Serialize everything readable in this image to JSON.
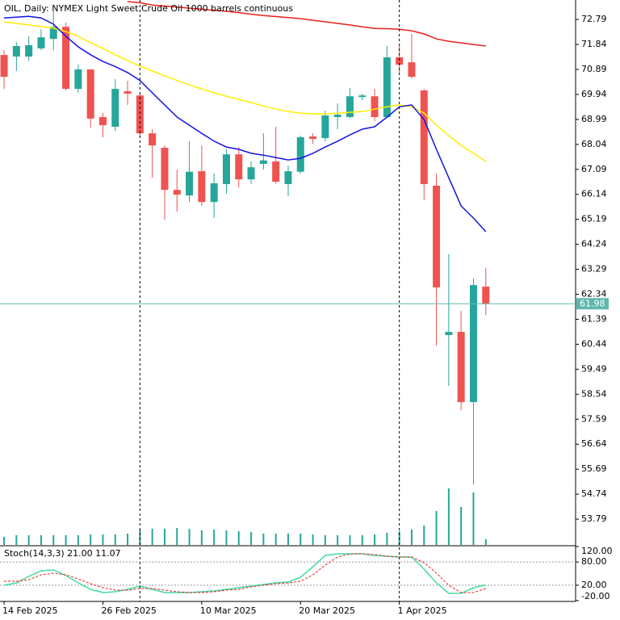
{
  "chart_data": [
    {
      "type": "candlestick",
      "title": "OIL, Daily:  NYMEX Light Sweet Crude Oil 1000 barrels continuous",
      "open": [
        71.44,
        71.38,
        71.38,
        71.69,
        72.05,
        72.51,
        70.15,
        70.89,
        69.08,
        68.71,
        70.06,
        69.9,
        68.46,
        67.91,
        66.31,
        66.1,
        67.02,
        65.85,
        66.53,
        67.66,
        66.71,
        67.3,
        67.39,
        66.53,
        67.0,
        68.34,
        68.28,
        69.08,
        69.08,
        69.84,
        69.87,
        69.08,
        71.35,
        71.16,
        70.09,
        66.47,
        60.79,
        60.91,
        58.24,
        62.63
      ],
      "high": [
        71.62,
        71.93,
        72.15,
        72.42,
        73.1,
        72.67,
        71.07,
        70.89,
        69.23,
        70.52,
        70.46,
        69.97,
        68.62,
        68.0,
        67.08,
        68.16,
        68.0,
        66.93,
        67.85,
        67.94,
        67.39,
        68.46,
        68.71,
        67.23,
        68.37,
        68.46,
        69.32,
        69.6,
        70.18,
        69.97,
        70.15,
        71.78,
        71.78,
        72.24,
        70.15,
        66.93,
        63.86,
        61.71,
        62.94,
        63.34
      ],
      "low": [
        70.15,
        70.83,
        71.22,
        71.62,
        71.62,
        70.09,
        70.0,
        68.68,
        68.31,
        68.55,
        69.54,
        68.31,
        66.77,
        65.18,
        65.48,
        65.85,
        65.7,
        65.24,
        66.16,
        66.4,
        66.53,
        67.08,
        66.53,
        66.07,
        66.93,
        68.06,
        68.16,
        68.62,
        69.05,
        69.72,
        68.92,
        69.05,
        70.77,
        70.55,
        65.91,
        60.39,
        58.86,
        57.93,
        55.11,
        61.55
      ],
      "close": [
        70.61,
        71.78,
        71.81,
        72.11,
        72.51,
        70.15,
        70.89,
        69.02,
        68.77,
        70.15,
        69.97,
        68.46,
        68.0,
        66.31,
        66.13,
        67.0,
        65.85,
        66.56,
        67.66,
        66.71,
        67.17,
        67.43,
        66.62,
        67.02,
        68.31,
        68.25,
        69.14,
        69.17,
        69.87,
        69.9,
        69.08,
        71.35,
        71.07,
        70.61,
        66.53,
        62.6,
        60.91,
        58.24,
        62.69,
        61.98
      ],
      "up_color": "#26a69a",
      "down_color": "#ef5350",
      "lines": [
        {
          "color": "#e8201a",
          "values": [
            null,
            null,
            null,
            null,
            null,
            null,
            null,
            null,
            null,
            null,
            73.47,
            73.43,
            73.34,
            73.3,
            73.26,
            73.22,
            73.18,
            73.14,
            73.1,
            73.05,
            72.99,
            72.94,
            72.9,
            72.86,
            72.82,
            72.76,
            72.7,
            72.64,
            72.58,
            72.51,
            72.45,
            72.44,
            72.42,
            72.36,
            72.24,
            72.05,
            71.96,
            71.9,
            71.84,
            71.78
          ]
        },
        {
          "color": "#ffee00",
          "values": [
            72.7,
            72.64,
            72.58,
            72.52,
            72.46,
            72.33,
            72.15,
            71.9,
            71.69,
            71.45,
            71.23,
            71.02,
            70.83,
            70.65,
            70.47,
            70.3,
            70.15,
            70.0,
            69.87,
            69.75,
            69.63,
            69.5,
            69.38,
            69.29,
            69.23,
            69.2,
            69.2,
            69.23,
            69.26,
            69.29,
            69.38,
            69.47,
            69.54,
            69.47,
            69.23,
            68.77,
            68.37,
            68.0,
            67.7,
            67.39
          ]
        },
        {
          "color": "#1414e0",
          "values": [
            72.85,
            72.88,
            72.91,
            72.85,
            72.61,
            72.15,
            71.75,
            71.45,
            71.19,
            71.0,
            70.77,
            70.47,
            70.0,
            69.54,
            69.08,
            68.77,
            68.46,
            68.16,
            67.94,
            67.85,
            67.7,
            67.63,
            67.54,
            67.45,
            67.51,
            67.7,
            67.94,
            68.16,
            68.4,
            68.62,
            68.71,
            69.08,
            69.47,
            69.54,
            68.98,
            67.85,
            66.77,
            65.7,
            65.24,
            64.72
          ]
        }
      ],
      "volume": {
        "color": "#26a69a",
        "ylim": [
          0,
          100
        ],
        "values": [
          10,
          12,
          12,
          12,
          12,
          12,
          12,
          13,
          13,
          13,
          14,
          19,
          20,
          20,
          21,
          20,
          18,
          19,
          18,
          17,
          16,
          14,
          14,
          14,
          14,
          13,
          12,
          12,
          12,
          12,
          13,
          15,
          17,
          19,
          24,
          42,
          70,
          47,
          65,
          7
        ]
      },
      "ylim": [
        52.81,
        73.53
      ],
      "yticks": [
        72.79,
        71.84,
        70.89,
        69.94,
        68.99,
        68.04,
        67.09,
        66.14,
        65.19,
        64.24,
        63.29,
        62.34,
        61.39,
        60.44,
        59.49,
        58.54,
        57.59,
        56.64,
        55.69,
        54.74,
        53.79
      ],
      "last_price": 61.98,
      "last_price_color": "#5fb8b0",
      "xlim": [
        -0.33,
        46.27
      ],
      "xticks": [
        {
          "value": 0,
          "label": "14 Feb 2025"
        },
        {
          "value": 8,
          "label": "26 Feb 2025"
        },
        {
          "value": 16,
          "label": "10 Mar 2025"
        },
        {
          "value": 24,
          "label": "20 Mar 2025"
        },
        {
          "value": 32,
          "label": "1 Apr 2025"
        }
      ],
      "period_separators": [
        11,
        32
      ]
    },
    {
      "type": "line",
      "title": "Stoch(14,3,3)",
      "series": [
        {
          "color": "#40dca0",
          "dashed": false,
          "last_label": "21.00",
          "values": [
            19.7,
            26.0,
            42.7,
            57.3,
            59.4,
            44.8,
            26.0,
            9.3,
            0.9,
            3.0,
            9.3,
            17.6,
            9.3,
            0.9,
            0.9,
            0.9,
            3.0,
            5.1,
            9.3,
            13.4,
            17.6,
            21.7,
            26.0,
            28.1,
            40.6,
            67.8,
            97.0,
            101.2,
            101.2,
            101.2,
            97.0,
            94.9,
            92.8,
            92.8,
            61.5,
            26.0,
            -1.2,
            -1.2,
            13.4,
            21.0
          ]
        },
        {
          "color": "#e8201a",
          "dashed": true,
          "last_label": "11.07",
          "values": [
            30.1,
            30.1,
            34.3,
            46.9,
            51.0,
            46.9,
            36.4,
            23.9,
            13.4,
            7.2,
            7.2,
            11.3,
            11.3,
            7.2,
            3.0,
            0.9,
            0.9,
            3.0,
            7.2,
            9.3,
            15.5,
            19.7,
            23.9,
            26.0,
            30.1,
            46.9,
            71.9,
            92.8,
            101.2,
            101.2,
            99.1,
            94.9,
            92.8,
            92.8,
            78.2,
            51.0,
            19.7,
            0.9,
            0.9,
            11.07
          ]
        }
      ],
      "ylim": [
        -20,
        120
      ],
      "yticks": [
        {
          "value": 120,
          "label": "120.00"
        },
        {
          "value": 80,
          "label": "80.00"
        },
        {
          "value": 20,
          "label": "20.00"
        },
        {
          "value": -20,
          "label": "-20.00"
        }
      ],
      "levels": [
        80,
        20
      ]
    }
  ]
}
